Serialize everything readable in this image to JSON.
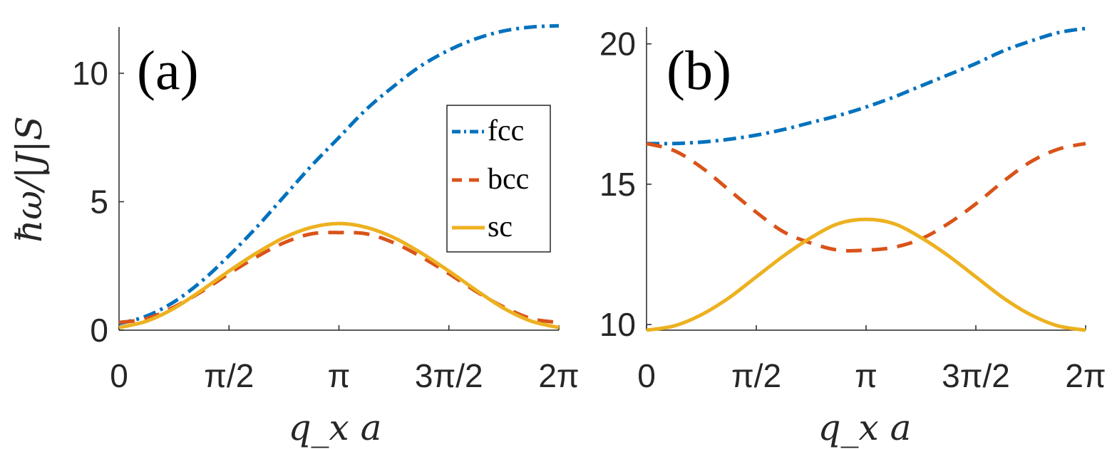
{
  "chart_data": [
    {
      "type": "line",
      "panel_label": "(a)",
      "xlabel": "q_x a",
      "ylabel": "ħω/|J|S",
      "xlim": [
        0,
        6.2832
      ],
      "ylim": [
        0,
        11.8
      ],
      "xticks": [
        0,
        1.5708,
        3.1416,
        4.7124,
        6.2832
      ],
      "xtick_labels": [
        "0",
        "π/2",
        "π",
        "3π/2",
        "2π"
      ],
      "yticks": [
        0,
        5,
        10
      ],
      "ytick_labels": [
        "0",
        "5",
        "10"
      ],
      "legend": {
        "position": "center-right",
        "entries": [
          "fcc",
          "bcc",
          "sc"
        ]
      },
      "series": [
        {
          "name": "fcc",
          "style": "dashdot",
          "color": "#0072BD",
          "x": [
            0,
            0.3927,
            0.7854,
            1.1781,
            1.5708,
            1.9635,
            2.3562,
            2.7489,
            3.1416,
            3.5343,
            3.927,
            4.3197,
            4.7124,
            5.1051,
            5.4978,
            5.8905,
            6.2832
          ],
          "values": [
            0.25,
            0.55,
            1.1,
            1.9,
            2.9,
            4.0,
            5.2,
            6.4,
            7.5,
            8.6,
            9.5,
            10.3,
            10.9,
            11.35,
            11.65,
            11.8,
            11.85
          ]
        },
        {
          "name": "bcc",
          "style": "dashed",
          "color": "#D95319",
          "x": [
            0,
            0.3927,
            0.7854,
            1.1781,
            1.5708,
            1.9635,
            2.3562,
            2.7489,
            3.1416,
            3.5343,
            3.927,
            4.3197,
            4.7124,
            5.1051,
            5.4978,
            5.8905,
            6.2832
          ],
          "values": [
            0.3,
            0.45,
            0.9,
            1.5,
            2.2,
            2.85,
            3.4,
            3.75,
            3.8,
            3.75,
            3.4,
            2.85,
            2.2,
            1.5,
            0.9,
            0.45,
            0.3
          ]
        },
        {
          "name": "sc",
          "style": "solid",
          "color": "#EDB120",
          "x": [
            0,
            0.3927,
            0.7854,
            1.1781,
            1.5708,
            1.9635,
            2.3562,
            2.7489,
            3.1416,
            3.5343,
            3.927,
            4.3197,
            4.7124,
            5.1051,
            5.4978,
            5.8905,
            6.2832
          ],
          "values": [
            0.1,
            0.35,
            0.85,
            1.55,
            2.3,
            3.0,
            3.6,
            4.0,
            4.15,
            4.0,
            3.6,
            3.0,
            2.3,
            1.55,
            0.85,
            0.35,
            0.1
          ]
        }
      ]
    },
    {
      "type": "line",
      "panel_label": "(b)",
      "xlabel": "q_x a",
      "ylabel": "",
      "xlim": [
        0,
        6.2832
      ],
      "ylim": [
        9.8,
        20.6
      ],
      "xticks": [
        0,
        1.5708,
        3.1416,
        4.7124,
        6.2832
      ],
      "xtick_labels": [
        "0",
        "π/2",
        "π",
        "3π/2",
        "2π"
      ],
      "yticks": [
        10,
        15,
        20
      ],
      "ytick_labels": [
        "10",
        "15",
        "20"
      ],
      "series": [
        {
          "name": "fcc",
          "style": "dashdot",
          "color": "#0072BD",
          "x": [
            0,
            0.3927,
            0.7854,
            1.1781,
            1.5708,
            1.9635,
            2.3562,
            2.7489,
            3.1416,
            3.5343,
            3.927,
            4.3197,
            4.7124,
            5.1051,
            5.4978,
            5.8905,
            6.2832
          ],
          "values": [
            16.45,
            16.45,
            16.5,
            16.6,
            16.75,
            16.95,
            17.2,
            17.45,
            17.75,
            18.1,
            18.5,
            18.9,
            19.3,
            19.75,
            20.1,
            20.4,
            20.55
          ]
        },
        {
          "name": "bcc",
          "style": "dashed",
          "color": "#D95319",
          "x": [
            0,
            0.3927,
            0.7854,
            1.1781,
            1.5708,
            1.9635,
            2.3562,
            2.7489,
            3.1416,
            3.5343,
            3.927,
            4.3197,
            4.7124,
            5.1051,
            5.4978,
            5.8905,
            6.2832
          ],
          "values": [
            16.45,
            16.2,
            15.6,
            14.8,
            14.0,
            13.3,
            12.9,
            12.65,
            12.65,
            12.75,
            13.05,
            13.6,
            14.3,
            15.1,
            15.8,
            16.25,
            16.45
          ]
        },
        {
          "name": "sc",
          "style": "solid",
          "color": "#EDB120",
          "x": [
            0,
            0.3927,
            0.7854,
            1.1781,
            1.5708,
            1.9635,
            2.3562,
            2.7489,
            3.1416,
            3.5343,
            3.927,
            4.3197,
            4.7124,
            5.1051,
            5.4978,
            5.8905,
            6.2832
          ],
          "values": [
            9.8,
            9.95,
            10.35,
            10.95,
            11.7,
            12.45,
            13.1,
            13.6,
            13.75,
            13.6,
            13.1,
            12.45,
            11.7,
            10.95,
            10.35,
            9.95,
            9.8
          ]
        }
      ]
    }
  ]
}
